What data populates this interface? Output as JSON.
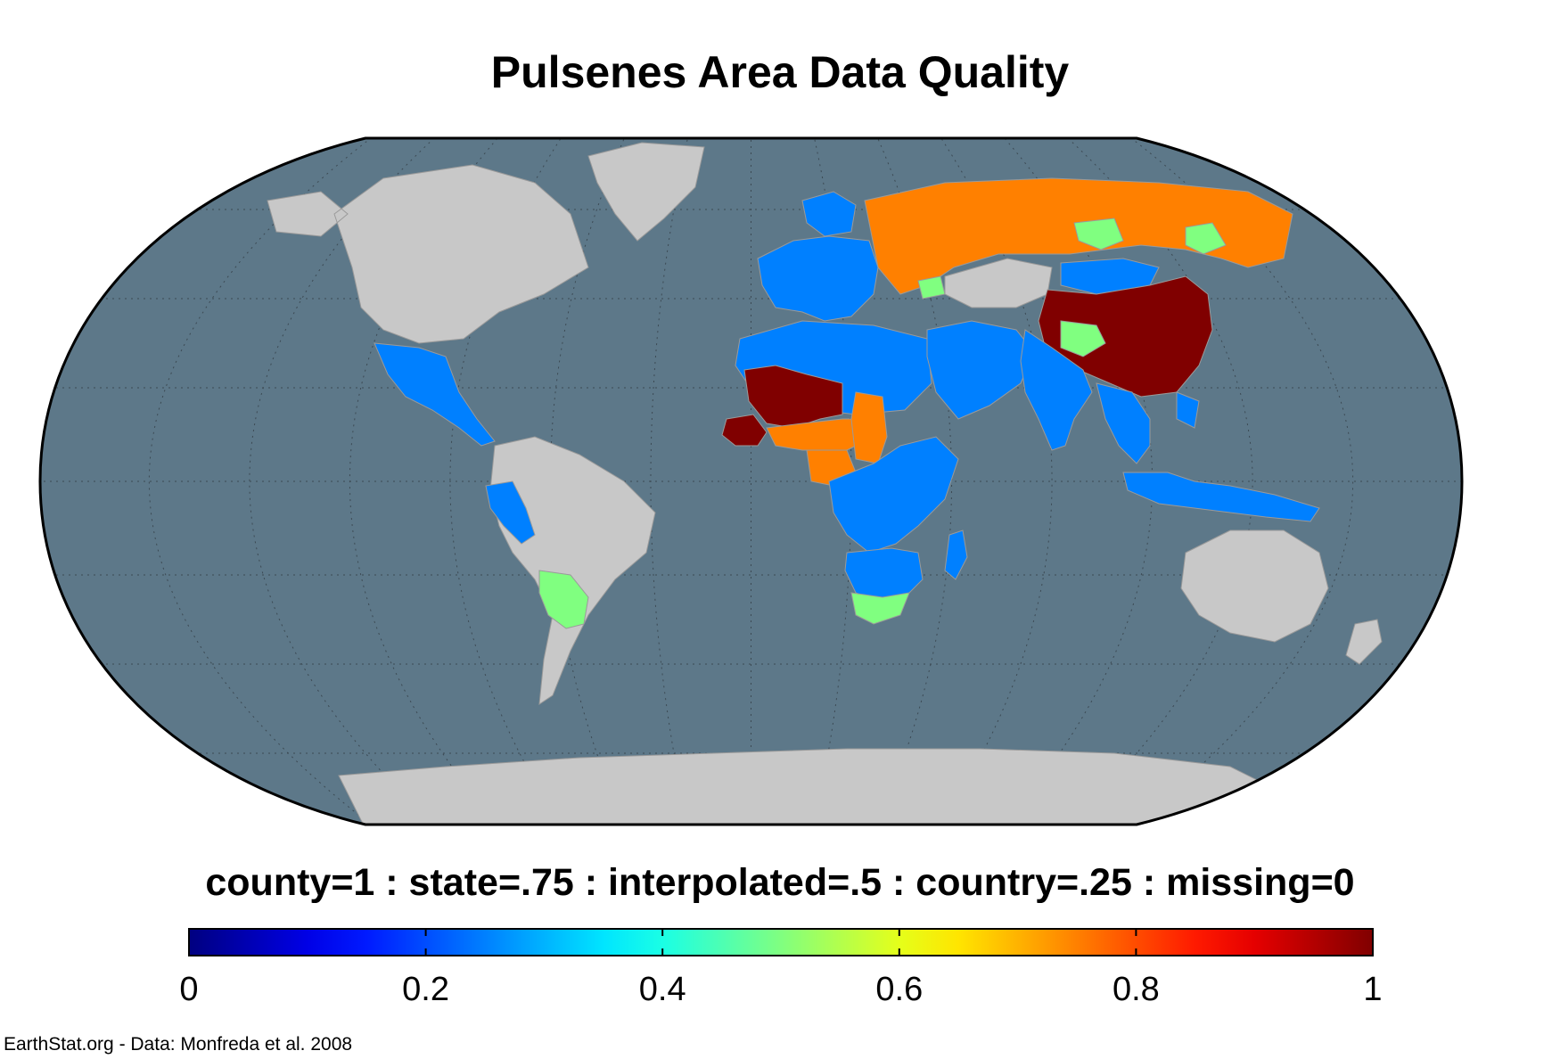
{
  "title": "Pulsenes Area Data Quality",
  "map": {
    "projection": "Robinson",
    "ocean_color": "#5d7889",
    "land_no_data_color": "#c8c8c8",
    "border_color": "#9a9a9a",
    "graticule": true,
    "regions": [
      {
        "name": "North America",
        "value": null
      },
      {
        "name": "Greenland",
        "value": null
      },
      {
        "name": "Mexico and Central America",
        "value": 0.25
      },
      {
        "name": "South America (most)",
        "value": null
      },
      {
        "name": "Peru",
        "value": 0.25
      },
      {
        "name": "Argentina (north)",
        "value": 0.5
      },
      {
        "name": "Europe",
        "value": 0.25
      },
      {
        "name": "Russia",
        "value": 0.75
      },
      {
        "name": "Russia (patches)",
        "value": 0.5
      },
      {
        "name": "Kazakhstan",
        "value": null
      },
      {
        "name": "Mongolia",
        "value": 0.25
      },
      {
        "name": "China",
        "value": 1
      },
      {
        "name": "Western China patch",
        "value": 0.5
      },
      {
        "name": "North Africa",
        "value": 0.25
      },
      {
        "name": "Mali and Mauritania",
        "value": 1
      },
      {
        "name": "Senegal and Guinea",
        "value": 1
      },
      {
        "name": "Burkina Faso and Niger",
        "value": 0.75
      },
      {
        "name": "Nigeria",
        "value": 0.75
      },
      {
        "name": "Chad",
        "value": 0.75
      },
      {
        "name": "Central and East Africa",
        "value": 0.25
      },
      {
        "name": "Southern Africa",
        "value": 0.25
      },
      {
        "name": "South Africa",
        "value": 0.5
      },
      {
        "name": "Madagascar",
        "value": 0.25
      },
      {
        "name": "Middle East",
        "value": 0.25
      },
      {
        "name": "South Asia",
        "value": 0.25
      },
      {
        "name": "Southeast Asia",
        "value": 0.25
      },
      {
        "name": "Indonesia and Papua",
        "value": 0.25
      },
      {
        "name": "Australia",
        "value": null
      },
      {
        "name": "New Zealand",
        "value": null
      },
      {
        "name": "Antarctica",
        "value": null
      }
    ]
  },
  "legend": {
    "caption": "county=1 : state=.75 : interpolated=.5 : country=.25 : missing=0",
    "colormap": "jet",
    "range": [
      0,
      1
    ],
    "ticks": [
      "0",
      "0.2",
      "0.4",
      "0.6",
      "0.8",
      "1"
    ],
    "tick_values": [
      0,
      0.2,
      0.4,
      0.6,
      0.8,
      1
    ]
  },
  "credit": "EarthStat.org - Data: Monfreda et al. 2008"
}
